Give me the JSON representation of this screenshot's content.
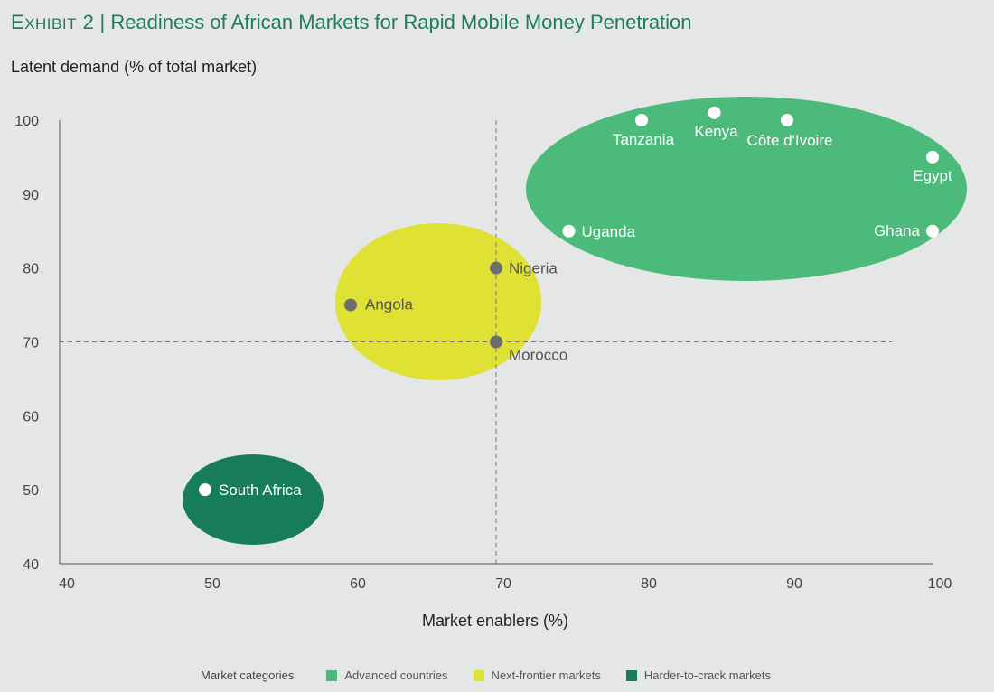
{
  "header": {
    "exhibit": "Exhibit 2",
    "title": "Readiness of African Markets for Rapid Mobile Money Penetration"
  },
  "chart_data": {
    "type": "scatter",
    "xlabel": "Market enablers (%)",
    "ylabel": "Latent demand (% of total market)",
    "xlim": [
      40,
      100
    ],
    "ylim": [
      40,
      100
    ],
    "xticks": [
      40,
      50,
      60,
      70,
      80,
      90,
      100
    ],
    "yticks": [
      40,
      50,
      60,
      70,
      80,
      90,
      100
    ],
    "reference_lines": {
      "x": 70,
      "y": 70
    },
    "grid": false,
    "series": [
      {
        "name": "Advanced countries",
        "color": "#4bba7a",
        "points": [
          {
            "label": "Tanzania",
            "x": 80,
            "y": 100
          },
          {
            "label": "Kenya",
            "x": 85,
            "y": 101
          },
          {
            "label": "Côte d'Ivoire",
            "x": 90,
            "y": 100
          },
          {
            "label": "Egypt",
            "x": 100,
            "y": 95
          },
          {
            "label": "Uganda",
            "x": 75,
            "y": 85
          },
          {
            "label": "Ghana",
            "x": 100,
            "y": 85
          }
        ]
      },
      {
        "name": "Next-frontier markets",
        "color": "#dfe134",
        "points": [
          {
            "label": "Nigeria",
            "x": 70,
            "y": 80
          },
          {
            "label": "Angola",
            "x": 60,
            "y": 75
          },
          {
            "label": "Morocco",
            "x": 70,
            "y": 70
          }
        ]
      },
      {
        "name": "Harder-to-crack markets",
        "color": "#177c58",
        "points": [
          {
            "label": "South Africa",
            "x": 50,
            "y": 50
          }
        ]
      }
    ],
    "legend": {
      "title": "Market categories",
      "placement": "bottom"
    }
  }
}
